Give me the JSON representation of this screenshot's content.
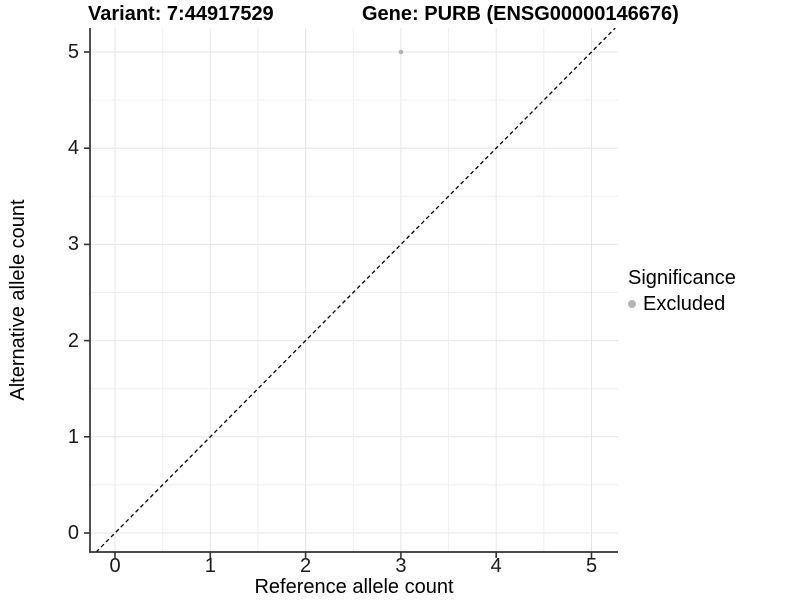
{
  "chart_data": {
    "type": "scatter",
    "title_left": "Variant: 7:44917529",
    "title_right": "Gene: PURB (ENSG00000146676)",
    "xlabel": "Reference allele count",
    "ylabel": "Alternative allele count",
    "x_ticks": [
      0,
      1,
      2,
      3,
      4,
      5
    ],
    "y_ticks": [
      0,
      1,
      2,
      3,
      4,
      5
    ],
    "xlim": [
      -0.26,
      5.29
    ],
    "ylim": [
      -0.2,
      5.25
    ],
    "grid": true,
    "grid_step": 0.5,
    "series": [
      {
        "name": "Excluded",
        "color": "#b5b5b5",
        "points": [
          {
            "x": 3,
            "y": 5
          }
        ]
      }
    ],
    "reference_line": {
      "type": "identity",
      "slope": 1,
      "intercept": 0,
      "style": "dashed",
      "color": "#000000"
    },
    "legend": {
      "title": "Significance",
      "position": "right",
      "items": [
        {
          "label": "Excluded",
          "color": "#b5b5b5"
        }
      ]
    },
    "colors": {
      "grid_major": "#e6e6e6",
      "grid_minor": "#efefef",
      "axis_line": "#333333",
      "background": "#ffffff"
    }
  }
}
